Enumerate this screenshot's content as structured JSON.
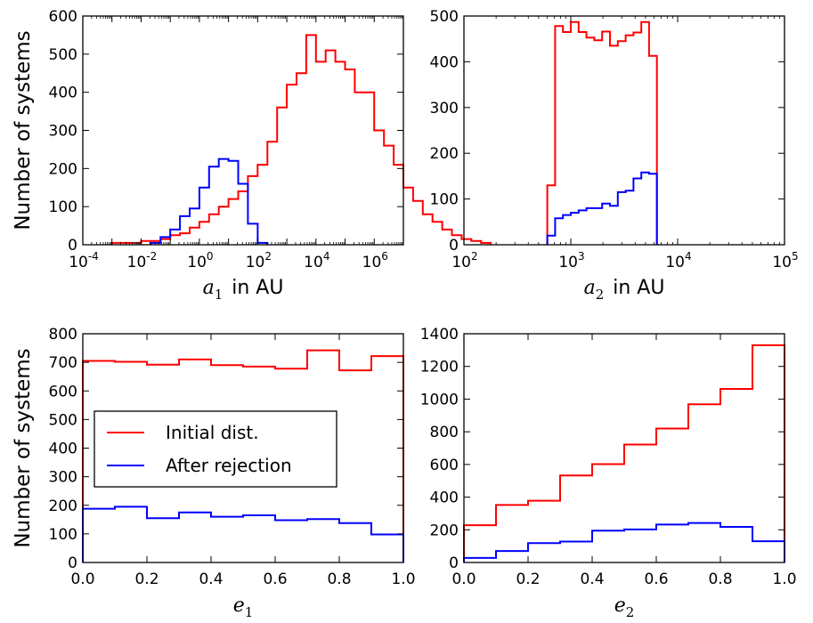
{
  "chart_data": [
    {
      "id": "a1",
      "type": "histogram",
      "xscale": "log",
      "xlim_exp": [
        -4,
        7
      ],
      "ylim": [
        0,
        600
      ],
      "yticks": [
        0,
        100,
        200,
        300,
        400,
        500,
        600
      ],
      "xticks_exp": [
        -4,
        -2,
        0,
        2,
        4,
        6
      ],
      "ylabel": "Number of systems",
      "xlabel": {
        "sym": "a",
        "sub": "1",
        "text": "in AU"
      },
      "bin_width_exp": 0.3333,
      "series": [
        {
          "name": "Initial dist.",
          "color": "#ff0000",
          "start_exp": -3.0,
          "values": [
            5,
            5,
            5,
            10,
            10,
            15,
            25,
            30,
            45,
            60,
            80,
            100,
            120,
            140,
            180,
            210,
            270,
            360,
            420,
            450,
            550,
            480,
            510,
            480,
            460,
            400,
            400,
            300,
            260,
            210,
            150,
            115,
            80,
            60,
            40,
            25,
            15,
            10,
            5
          ]
        },
        {
          "name": "After rejection",
          "color": "#0000ff",
          "start_exp": -1.6667,
          "values": [
            5,
            20,
            40,
            75,
            95,
            150,
            205,
            225,
            220,
            160,
            55,
            5
          ]
        }
      ]
    },
    {
      "id": "a2",
      "type": "histogram",
      "xscale": "log",
      "xlim_exp": [
        2,
        5
      ],
      "ylim": [
        0,
        500
      ],
      "yticks": [
        0,
        100,
        200,
        300,
        400,
        500
      ],
      "xticks_exp": [
        2,
        3,
        4,
        5
      ],
      "ylabel": "",
      "xlabel": {
        "sym": "a",
        "sub": "2",
        "text": "in AU"
      },
      "bin_width_exp": 0.0733,
      "series": [
        {
          "name": "Initial dist.",
          "color": "#ff0000",
          "start_exp": 2.78,
          "values": [
            130,
            478,
            465,
            487,
            465,
            453,
            447,
            466,
            435,
            445,
            458,
            464,
            487,
            413
          ]
        },
        {
          "name": "After rejection",
          "color": "#0000ff",
          "start_exp": 2.78,
          "values": [
            20,
            58,
            65,
            70,
            75,
            80,
            80,
            90,
            85,
            115,
            118,
            145,
            158,
            155
          ]
        }
      ]
    },
    {
      "id": "e1",
      "type": "histogram",
      "xscale": "linear",
      "xlim": [
        0.0,
        1.0
      ],
      "ylim": [
        0,
        800
      ],
      "yticks": [
        0,
        100,
        200,
        300,
        400,
        500,
        600,
        700,
        800
      ],
      "xticks": [
        "0.0",
        "0.2",
        "0.4",
        "0.6",
        "0.8",
        "1.0"
      ],
      "ylabel": "Number of systems",
      "xlabel": {
        "sym": "e",
        "sub": "1",
        "text": ""
      },
      "bin_edges": [
        0.0,
        0.1,
        0.2,
        0.3,
        0.4,
        0.5,
        0.6,
        0.7,
        0.8,
        0.9,
        1.0
      ],
      "series": [
        {
          "name": "Initial dist.",
          "color": "#ff0000",
          "values": [
            705,
            702,
            692,
            710,
            690,
            685,
            678,
            742,
            672,
            722
          ]
        },
        {
          "name": "After rejection",
          "color": "#0000ff",
          "values": [
            188,
            195,
            155,
            175,
            160,
            165,
            148,
            152,
            138,
            98
          ]
        }
      ],
      "legend": {
        "location": "center-left",
        "entries": [
          "Initial dist.",
          "After rejection"
        ]
      }
    },
    {
      "id": "e2",
      "type": "histogram",
      "xscale": "linear",
      "xlim": [
        0.0,
        1.0
      ],
      "ylim": [
        0,
        1400
      ],
      "yticks": [
        0,
        200,
        400,
        600,
        800,
        1000,
        1200,
        1400
      ],
      "xticks": [
        "0.0",
        "0.2",
        "0.4",
        "0.6",
        "0.8",
        "1.0"
      ],
      "ylabel": "",
      "xlabel": {
        "sym": "e",
        "sub": "2",
        "text": ""
      },
      "bin_edges": [
        0.0,
        0.1,
        0.2,
        0.3,
        0.4,
        0.5,
        0.6,
        0.7,
        0.8,
        0.9,
        1.0
      ],
      "series": [
        {
          "name": "Initial dist.",
          "color": "#ff0000",
          "values": [
            228,
            352,
            378,
            532,
            602,
            722,
            820,
            968,
            1062,
            1330
          ]
        },
        {
          "name": "After rejection",
          "color": "#0000ff",
          "values": [
            28,
            70,
            118,
            128,
            195,
            202,
            232,
            242,
            218,
            130
          ]
        }
      ]
    }
  ]
}
